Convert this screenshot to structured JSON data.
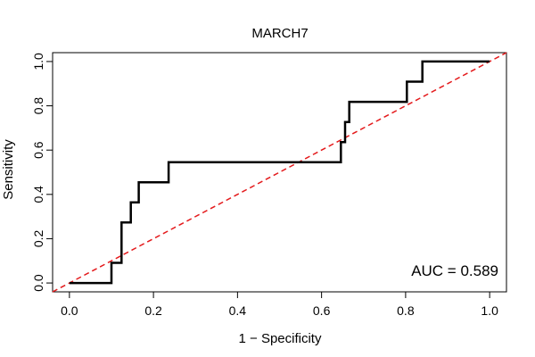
{
  "chart_data": {
    "type": "line",
    "title": "MARCH7",
    "xlabel": "1 − Specificity",
    "ylabel": "Sensitivity",
    "xlim": [
      -0.04,
      1.04
    ],
    "ylim": [
      -0.04,
      1.04
    ],
    "xticks": [
      0.0,
      0.2,
      0.4,
      0.6,
      0.8,
      1.0
    ],
    "xtick_labels": [
      "0.0",
      "0.2",
      "0.4",
      "0.6",
      "0.8",
      "1.0"
    ],
    "yticks": [
      0.0,
      0.2,
      0.4,
      0.6,
      0.8,
      1.0
    ],
    "ytick_labels": [
      "0.0",
      "0.2",
      "0.4",
      "0.6",
      "0.8",
      "1.0"
    ],
    "grid": false,
    "annotation": "AUC = 0.589",
    "reference_line": {
      "x": [
        0,
        1
      ],
      "y": [
        0,
        1
      ],
      "color": "#e41a1c",
      "style": "dashed"
    },
    "series": [
      {
        "color": "#000000",
        "x": [
          0.0,
          0.1,
          0.1,
          0.124,
          0.124,
          0.146,
          0.146,
          0.165,
          0.165,
          0.236,
          0.236,
          0.646,
          0.646,
          0.656,
          0.656,
          0.666,
          0.666,
          0.676,
          0.676,
          0.803,
          0.803,
          0.84,
          0.84,
          1.0
        ],
        "y": [
          0.0,
          0.0,
          0.091,
          0.091,
          0.273,
          0.273,
          0.364,
          0.364,
          0.455,
          0.455,
          0.545,
          0.545,
          0.636,
          0.636,
          0.727,
          0.727,
          0.818,
          0.818,
          0.818,
          0.818,
          0.909,
          0.909,
          1.0,
          1.0
        ]
      }
    ]
  }
}
